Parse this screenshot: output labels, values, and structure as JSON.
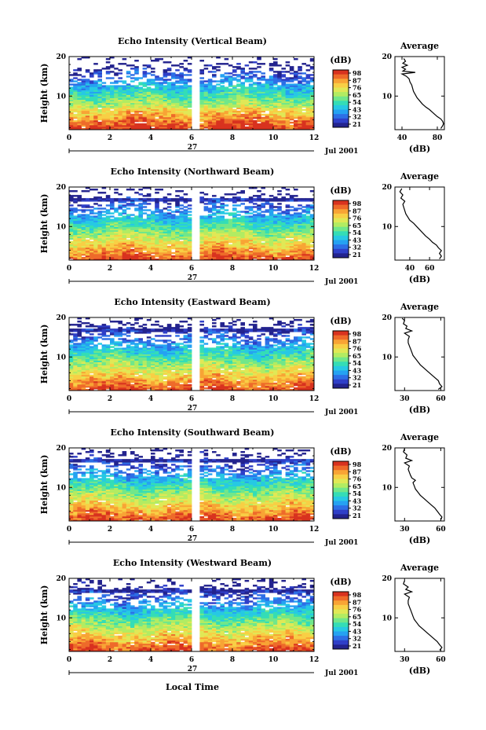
{
  "footer": {
    "xlabel": "Local Time"
  },
  "colormap": [
    "#23238e",
    "#2f3fc8",
    "#2d6fe6",
    "#25a2f2",
    "#27c9e3",
    "#34ddb6",
    "#71e78a",
    "#b2ec62",
    "#e0e856",
    "#f8cf45",
    "#f8a435",
    "#ee6a2a",
    "#d8321f"
  ],
  "chart_data": [
    {
      "type": "heatmap",
      "title": "Echo Intensity (Vertical Beam)",
      "ylabel": "Height (km)",
      "xticks": [
        "0",
        "2",
        "4",
        "6",
        "8",
        "10",
        "12"
      ],
      "yticks": [
        "10",
        "20"
      ],
      "xlim": [
        0,
        12
      ],
      "ylim": [
        1.5,
        20
      ],
      "date_label": "27",
      "date_suffix": "Jul 2001",
      "colorbar": {
        "unit": "(dB)",
        "ticks": [
          "98",
          "87",
          "76",
          "65",
          "54",
          "43",
          "32",
          "21"
        ]
      },
      "gap": [
        6.05,
        6.35
      ],
      "profile": {
        "title": "Average",
        "xlabel": "(dB)",
        "xlim": [
          32,
          88
        ],
        "xticks": [
          "40",
          "80"
        ],
        "yticks": [
          "10",
          "20"
        ],
        "points": [
          [
            1.8,
            84
          ],
          [
            2.5,
            86
          ],
          [
            3.0,
            87
          ],
          [
            3.6,
            86
          ],
          [
            4.2,
            84
          ],
          [
            4.8,
            80
          ],
          [
            5.4,
            77
          ],
          [
            6.0,
            74
          ],
          [
            6.6,
            71
          ],
          [
            7.2,
            67
          ],
          [
            8.0,
            63
          ],
          [
            8.8,
            60
          ],
          [
            9.6,
            57
          ],
          [
            10.4,
            55
          ],
          [
            11.2,
            53
          ],
          [
            12.0,
            52
          ],
          [
            12.8,
            51
          ],
          [
            13.6,
            49
          ],
          [
            14.4,
            48
          ],
          [
            15.0,
            45
          ],
          [
            15.6,
            40
          ],
          [
            16.0,
            55
          ],
          [
            16.3,
            41
          ],
          [
            16.8,
            44
          ],
          [
            17.3,
            40
          ],
          [
            17.8,
            46
          ],
          [
            18.3,
            41
          ],
          [
            18.8,
            44
          ],
          [
            19.5,
            42
          ]
        ]
      }
    },
    {
      "type": "heatmap",
      "title": "Echo Intensity (Northward Beam)",
      "ylabel": "Height (km)",
      "xticks": [
        "0",
        "2",
        "4",
        "6",
        "8",
        "10",
        "12"
      ],
      "yticks": [
        "10",
        "20"
      ],
      "xlim": [
        0,
        12
      ],
      "ylim": [
        1.5,
        20
      ],
      "date_label": "27",
      "date_suffix": "Jul 2001",
      "colorbar": {
        "unit": "(dB)",
        "ticks": [
          "98",
          "87",
          "76",
          "65",
          "54",
          "43",
          "32",
          "21"
        ]
      },
      "gap": [
        6.05,
        6.35
      ],
      "profile": {
        "title": "Average",
        "xlabel": "(dB)",
        "xlim": [
          25,
          75
        ],
        "xticks": [
          "40",
          "60"
        ],
        "yticks": [
          "10",
          "20"
        ],
        "points": [
          [
            1.8,
            70
          ],
          [
            2.5,
            72
          ],
          [
            3.2,
            70
          ],
          [
            3.9,
            72
          ],
          [
            4.6,
            69
          ],
          [
            5.3,
            67
          ],
          [
            6.0,
            63
          ],
          [
            6.8,
            60
          ],
          [
            7.6,
            56
          ],
          [
            8.4,
            53
          ],
          [
            9.2,
            50
          ],
          [
            10.0,
            47
          ],
          [
            10.8,
            44
          ],
          [
            11.6,
            40
          ],
          [
            12.4,
            38
          ],
          [
            13.2,
            36
          ],
          [
            14.0,
            35
          ],
          [
            14.8,
            34
          ],
          [
            15.6,
            33
          ],
          [
            16.4,
            35
          ],
          [
            17.2,
            31
          ],
          [
            18.0,
            33
          ],
          [
            18.8,
            30
          ],
          [
            19.6,
            32
          ]
        ]
      }
    },
    {
      "type": "heatmap",
      "title": "Echo Intensity (Eastward Beam)",
      "ylabel": "Height (km)",
      "xticks": [
        "0",
        "2",
        "4",
        "6",
        "8",
        "10",
        "12"
      ],
      "yticks": [
        "10",
        "20"
      ],
      "xlim": [
        0,
        12
      ],
      "ylim": [
        1.5,
        20
      ],
      "date_label": "27",
      "date_suffix": "Jul 2001",
      "colorbar": {
        "unit": "(dB)",
        "ticks": [
          "98",
          "87",
          "76",
          "65",
          "54",
          "43",
          "32",
          "21"
        ]
      },
      "gap": [
        6.05,
        6.35
      ],
      "profile": {
        "title": "Average",
        "xlabel": "(dB)",
        "xlim": [
          22,
          63
        ],
        "xticks": [
          "30",
          "60"
        ],
        "yticks": [
          "10",
          "20"
        ],
        "points": [
          [
            1.8,
            58
          ],
          [
            2.5,
            61
          ],
          [
            3.2,
            59
          ],
          [
            4.0,
            58
          ],
          [
            4.8,
            55
          ],
          [
            5.6,
            52
          ],
          [
            6.4,
            49
          ],
          [
            7.2,
            46
          ],
          [
            8.0,
            43
          ],
          [
            8.8,
            41
          ],
          [
            9.6,
            39
          ],
          [
            10.4,
            37
          ],
          [
            11.2,
            36
          ],
          [
            12.0,
            35
          ],
          [
            12.8,
            34
          ],
          [
            13.6,
            33
          ],
          [
            14.4,
            33
          ],
          [
            15.2,
            34
          ],
          [
            16.0,
            30
          ],
          [
            16.6,
            36
          ],
          [
            17.2,
            31
          ],
          [
            17.8,
            32
          ],
          [
            18.4,
            29
          ],
          [
            19.2,
            30
          ],
          [
            19.8,
            28
          ]
        ]
      }
    },
    {
      "type": "heatmap",
      "title": "Echo Intensity (Southward Beam)",
      "ylabel": "Height (km)",
      "xticks": [
        "0",
        "2",
        "4",
        "6",
        "8",
        "10",
        "12"
      ],
      "yticks": [
        "10",
        "20"
      ],
      "xlim": [
        0,
        12
      ],
      "ylim": [
        1.5,
        20
      ],
      "date_label": "27",
      "date_suffix": "Jul 2001",
      "colorbar": {
        "unit": "(dB)",
        "ticks": [
          "98",
          "87",
          "76",
          "65",
          "54",
          "43",
          "32",
          "21"
        ]
      },
      "gap": [
        6.05,
        6.35
      ],
      "profile": {
        "title": "Average",
        "xlabel": "(dB)",
        "xlim": [
          22,
          63
        ],
        "xticks": [
          "30",
          "60"
        ],
        "yticks": [
          "10",
          "20"
        ],
        "points": [
          [
            1.8,
            60
          ],
          [
            2.5,
            61
          ],
          [
            3.2,
            59
          ],
          [
            4.0,
            57
          ],
          [
            4.8,
            55
          ],
          [
            5.6,
            52
          ],
          [
            6.4,
            49
          ],
          [
            7.2,
            46
          ],
          [
            8.0,
            43
          ],
          [
            8.8,
            41
          ],
          [
            9.6,
            39
          ],
          [
            10.4,
            38
          ],
          [
            11.2,
            37
          ],
          [
            11.8,
            39
          ],
          [
            12.4,
            36
          ],
          [
            13.0,
            35
          ],
          [
            13.8,
            34
          ],
          [
            14.6,
            33
          ],
          [
            15.4,
            34
          ],
          [
            16.2,
            30
          ],
          [
            16.8,
            36
          ],
          [
            17.4,
            31
          ],
          [
            18.2,
            32
          ],
          [
            19.0,
            29
          ],
          [
            19.8,
            30
          ]
        ]
      }
    },
    {
      "type": "heatmap",
      "title": "Echo Intensity (Westward Beam)",
      "ylabel": "Height (km)",
      "xticks": [
        "0",
        "2",
        "4",
        "6",
        "8",
        "10",
        "12"
      ],
      "yticks": [
        "10",
        "20"
      ],
      "xlim": [
        0,
        12
      ],
      "ylim": [
        1.5,
        20
      ],
      "date_label": "27",
      "date_suffix": "Jul 2001",
      "colorbar": {
        "unit": "(dB)",
        "ticks": [
          "98",
          "87",
          "76",
          "65",
          "54",
          "43",
          "32",
          "21"
        ]
      },
      "gap": [
        6.05,
        6.35
      ],
      "profile": {
        "title": "Average",
        "xlabel": "(dB)",
        "xlim": [
          22,
          63
        ],
        "xticks": [
          "30",
          "60"
        ],
        "yticks": [
          "10",
          "20"
        ],
        "points": [
          [
            1.8,
            59
          ],
          [
            2.5,
            61
          ],
          [
            3.2,
            59
          ],
          [
            4.0,
            57
          ],
          [
            4.8,
            54
          ],
          [
            5.6,
            51
          ],
          [
            6.4,
            48
          ],
          [
            7.2,
            45
          ],
          [
            8.0,
            42
          ],
          [
            8.8,
            40
          ],
          [
            9.6,
            38
          ],
          [
            10.4,
            37
          ],
          [
            11.2,
            36
          ],
          [
            12.0,
            35
          ],
          [
            12.8,
            34
          ],
          [
            13.6,
            33
          ],
          [
            14.4,
            33
          ],
          [
            15.2,
            34
          ],
          [
            16.0,
            30
          ],
          [
            16.6,
            36
          ],
          [
            17.2,
            31
          ],
          [
            17.8,
            33
          ],
          [
            18.6,
            29
          ],
          [
            19.4,
            30
          ]
        ]
      }
    }
  ]
}
